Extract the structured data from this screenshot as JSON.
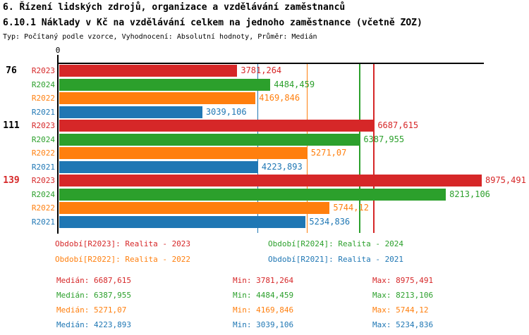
{
  "header": {
    "title": "6. Řízení lidských zdrojů, organizace a vzdělávání zaměstnanců",
    "subtitle": "6.10.1 Náklady v Kč na vzdělávání celkem na jednoho zaměstnance (včetně ZOZ)",
    "meta": "Typ: Počítaný podle vzorce, Vyhodnocení: Absolutní hodnoty, Průměr: Medián"
  },
  "colors": {
    "R2023": "#d62728",
    "R2024": "#2ca02c",
    "R2022": "#ff7f0e",
    "R2021": "#1f77b4",
    "axis": "#000000"
  },
  "chart_data": {
    "type": "bar",
    "orientation": "horizontal",
    "title": "6.10.1 Náklady v Kč na vzdělávání celkem na jednoho zaměstnance (včetně ZOZ)",
    "xlabel": "",
    "ylabel": "",
    "xlim": [
      0,
      9065
    ],
    "grid": false,
    "axis": {
      "origin_label": "0"
    },
    "groups": [
      {
        "label": "76",
        "label_color": "#000000",
        "bars": [
          {
            "series": "R2023",
            "value": 3781.264,
            "display": "3781,264"
          },
          {
            "series": "R2024",
            "value": 4484.459,
            "display": "4484,459"
          },
          {
            "series": "R2022",
            "value": 4169.846,
            "display": "4169,846"
          },
          {
            "series": "R2021",
            "value": 3039.106,
            "display": "3039,106"
          }
        ]
      },
      {
        "label": "111",
        "label_color": "#000000",
        "bars": [
          {
            "series": "R2023",
            "value": 6687.615,
            "display": "6687,615"
          },
          {
            "series": "R2024",
            "value": 6387.955,
            "display": "6387,955"
          },
          {
            "series": "R2022",
            "value": 5271.07,
            "display": "5271,07"
          },
          {
            "series": "R2021",
            "value": 4223.893,
            "display": "4223,893"
          }
        ]
      },
      {
        "label": "139",
        "label_color": "#d62728",
        "bars": [
          {
            "series": "R2023",
            "value": 8975.491,
            "display": "8975,491"
          },
          {
            "series": "R2024",
            "value": 8213.106,
            "display": "8213,106"
          },
          {
            "series": "R2022",
            "value": 5744.12,
            "display": "5744,12"
          },
          {
            "series": "R2021",
            "value": 5234.836,
            "display": "5234,836"
          }
        ]
      }
    ],
    "median_lines": [
      {
        "series": "R2021",
        "value": 4223.893
      },
      {
        "series": "R2022",
        "value": 5271.07
      },
      {
        "series": "R2024",
        "value": 6387.955
      },
      {
        "series": "R2023",
        "value": 6687.615
      }
    ]
  },
  "legend": [
    {
      "series": "R2023",
      "label": "Období[R2023]: Realita - 2023"
    },
    {
      "series": "R2024",
      "label": "Období[R2024]: Realita - 2024"
    },
    {
      "series": "R2022",
      "label": "Období[R2022]: Realita - 2022"
    },
    {
      "series": "R2021",
      "label": "Období[R2021]: Realita - 2021"
    }
  ],
  "stats": [
    {
      "series": "R2023",
      "median": "Medián: 6687,615",
      "min": "Min: 3781,264",
      "max": "Max: 8975,491"
    },
    {
      "series": "R2024",
      "median": "Medián: 6387,955",
      "min": "Min: 4484,459",
      "max": "Max: 8213,106"
    },
    {
      "series": "R2022",
      "median": "Medián: 5271,07",
      "min": "Min: 4169,846",
      "max": "Max: 5744,12"
    },
    {
      "series": "R2021",
      "median": "Medián: 4223,893",
      "min": "Min: 3039,106",
      "max": "Max: 5234,836"
    }
  ]
}
